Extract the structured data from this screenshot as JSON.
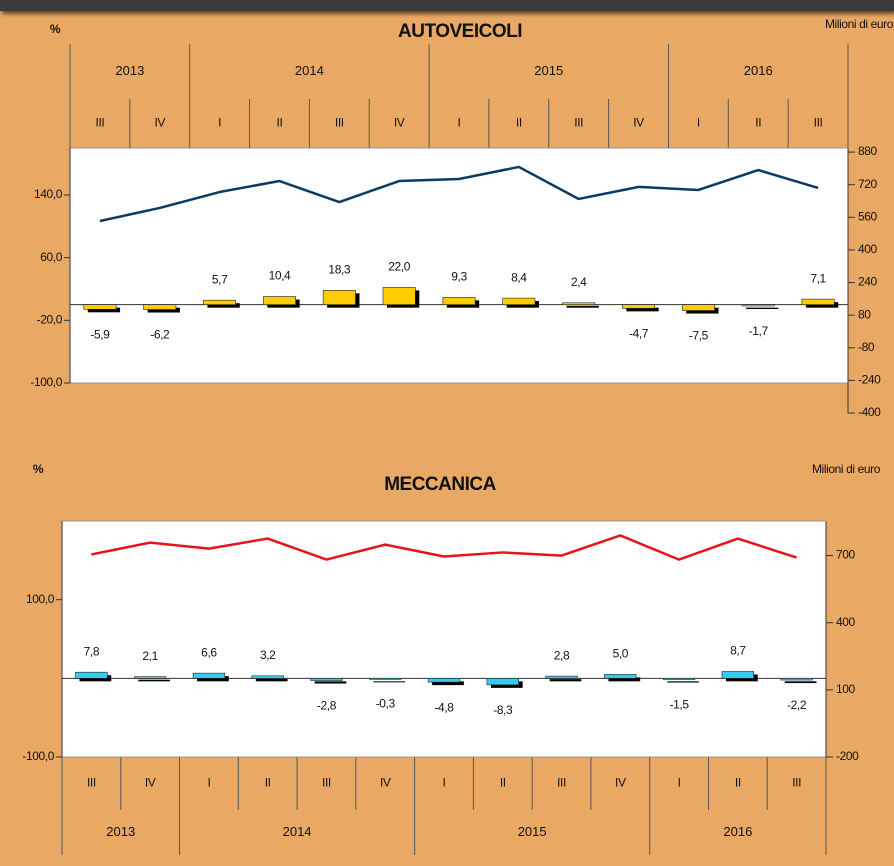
{
  "chart_data": [
    {
      "type": "combo",
      "title": "AUTOVEICOLI",
      "y_label": "%",
      "y2_label": "Milioni di euro",
      "groups": [
        {
          "name": "2013",
          "categories": [
            "III",
            "IV"
          ]
        },
        {
          "name": "2014",
          "categories": [
            "I",
            "II",
            "III",
            "IV"
          ]
        },
        {
          "name": "2015",
          "categories": [
            "I",
            "II",
            "III",
            "IV"
          ]
        },
        {
          "name": "2016",
          "categories": [
            "I",
            "II",
            "III"
          ]
        }
      ],
      "series": [
        {
          "type": "bar",
          "color": "#FFCC00",
          "values": [
            -5.9,
            -6.2,
            5.7,
            10.4,
            18.3,
            22.0,
            9.3,
            8.4,
            2.4,
            -4.7,
            -7.5,
            -1.7,
            7.1
          ],
          "value_labels": [
            "-5,9",
            "-6,2",
            "5,7",
            "10,4",
            "18,3",
            "22,0",
            "9,3",
            "8,4",
            "2,4",
            "-4,7",
            "-7,5",
            "-1,7",
            "7,1"
          ]
        },
        {
          "type": "line",
          "axis": "y2",
          "color": "#0B3A63",
          "values": [
            542,
            606,
            684,
            738,
            635,
            738,
            748,
            807,
            650,
            709,
            694,
            792,
            704
          ]
        }
      ],
      "ylim": [
        -100,
        200
      ],
      "yticks": [
        {
          "value": -100,
          "label": "-100,0"
        },
        {
          "value": -20,
          "label": "-20,0"
        },
        {
          "value": 60,
          "label": "60,0"
        },
        {
          "value": 140,
          "label": "140,0"
        }
      ],
      "y2lim": [
        -400,
        900
      ],
      "y2ticks": [
        -400,
        -240,
        -80,
        80,
        240,
        400,
        560,
        720,
        880
      ]
    },
    {
      "type": "combo",
      "title": "MECCANICA",
      "y_label": "%",
      "y2_label": "Milioni di euro",
      "groups": [
        {
          "name": "2013",
          "categories": [
            "III",
            "IV"
          ]
        },
        {
          "name": "2014",
          "categories": [
            "I",
            "II",
            "III",
            "IV"
          ]
        },
        {
          "name": "2015",
          "categories": [
            "I",
            "II",
            "III",
            "IV"
          ]
        },
        {
          "name": "2016",
          "categories": [
            "I",
            "II",
            "III"
          ]
        }
      ],
      "series": [
        {
          "type": "bar",
          "color": "#33CCEE",
          "values": [
            7.8,
            2.1,
            6.6,
            3.2,
            -2.8,
            -0.3,
            -4.8,
            -8.3,
            2.8,
            5.0,
            -1.5,
            8.7,
            -2.2
          ],
          "value_labels": [
            "7,8",
            "2,1",
            "6,6",
            "3,2",
            "-2,8",
            "-0,3",
            "-4,8",
            "-8,3",
            "2,8",
            "5,0",
            "-1,5",
            "8,7",
            "-2,2"
          ]
        },
        {
          "type": "line",
          "axis": "y2",
          "color": "#E8141B",
          "values": [
            705,
            758,
            731,
            776,
            682,
            749,
            696,
            714,
            700,
            790,
            682,
            776,
            691
          ]
        }
      ],
      "ylim": [
        -100,
        200
      ],
      "yticks": [
        {
          "value": -100,
          "label": "-100,0"
        },
        {
          "value": 100,
          "label": "100,0"
        }
      ],
      "y2lim": [
        -200,
        850
      ],
      "y2ticks": [
        -200,
        100,
        400,
        700
      ]
    }
  ]
}
